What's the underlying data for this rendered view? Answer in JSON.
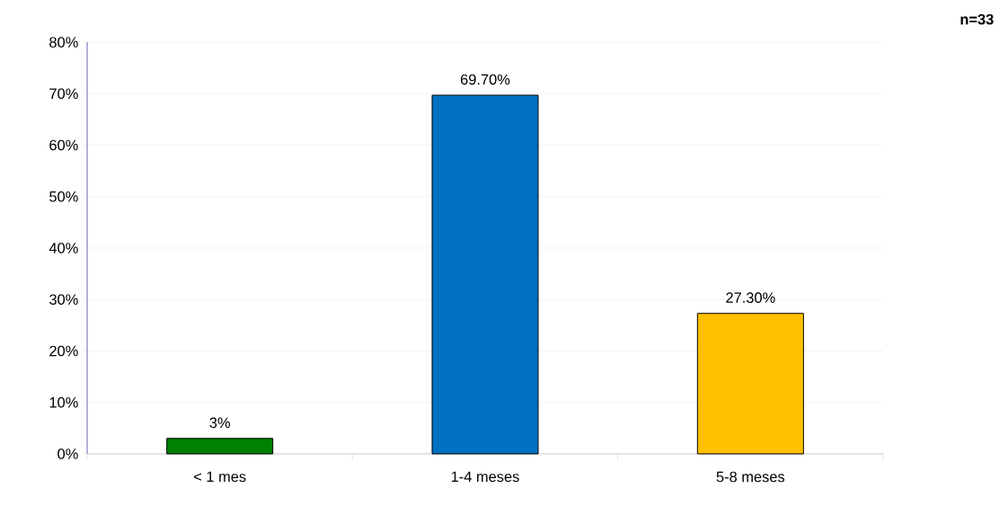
{
  "chart_data": {
    "type": "bar",
    "categories": [
      "< 1 mes",
      "1-4 meses",
      "5-8 meses"
    ],
    "values": [
      3,
      69.7,
      27.3
    ],
    "colors": [
      "#008000",
      "#0070c0",
      "#ffc000"
    ],
    "value_labels": [
      "3%",
      "69.70%",
      "27.30%"
    ],
    "ylim": [
      0,
      80
    ],
    "yticks": [
      {
        "value": 0,
        "label": "0%"
      },
      {
        "value": 10,
        "label": "10%"
      },
      {
        "value": 20,
        "label": "20%"
      },
      {
        "value": 30,
        "label": "30%"
      },
      {
        "value": 40,
        "label": "40%"
      },
      {
        "value": 50,
        "label": "50%"
      },
      {
        "value": 60,
        "label": "60%"
      },
      {
        "value": 70,
        "label": "70%"
      },
      {
        "value": 80,
        "label": "80%"
      }
    ],
    "grid": "y",
    "annotations": [
      "n=33"
    ]
  }
}
